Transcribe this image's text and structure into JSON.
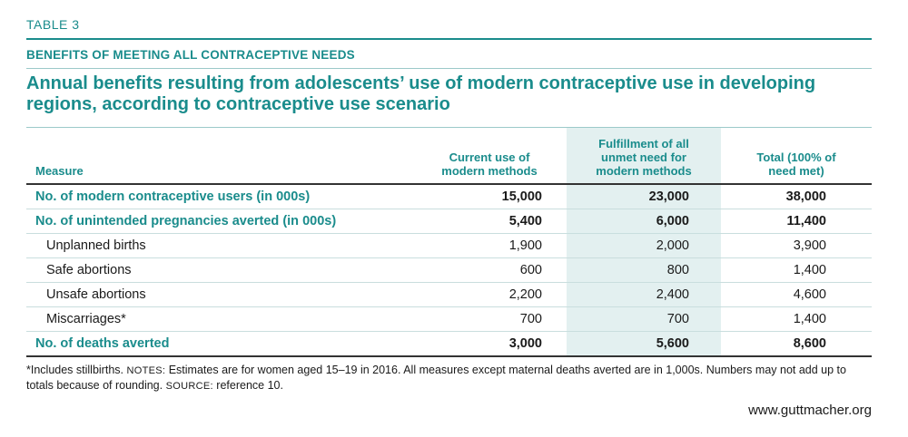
{
  "header": {
    "table_label": "TABLE 3",
    "subtitle": "BENEFITS OF MEETING ALL CONTRACEPTIVE NEEDS",
    "title": "Annual benefits resulting from adolescents’ use of modern contraceptive use in developing regions, according to contraceptive use scenario"
  },
  "table": {
    "columns": [
      {
        "label": "Measure"
      },
      {
        "label": "Current use of modern methods"
      },
      {
        "label": "Fulfillment of all unmet need for modern methods"
      },
      {
        "label": "Total (100% of need met)"
      }
    ],
    "rows": [
      {
        "name": "No. of modern contraceptive users (in 000s)",
        "current": "15,000",
        "fulfillment": "23,000",
        "total": "38,000",
        "bold": true
      },
      {
        "name": "No. of unintended pregnancies averted (in 000s)",
        "current": "5,400",
        "fulfillment": "6,000",
        "total": "11,400",
        "bold": true
      },
      {
        "name": "Unplanned births",
        "current": "1,900",
        "fulfillment": "2,000",
        "total": "3,900",
        "bold": false
      },
      {
        "name": "Safe abortions",
        "current": "600",
        "fulfillment": "800",
        "total": "1,400",
        "bold": false
      },
      {
        "name": "Unsafe abortions",
        "current": "2,200",
        "fulfillment": "2,400",
        "total": "4,600",
        "bold": false
      },
      {
        "name": "Miscarriages*",
        "current": "700",
        "fulfillment": "700",
        "total": "1,400",
        "bold": false
      },
      {
        "name": "No. of deaths averted",
        "current": "3,000",
        "fulfillment": "5,600",
        "total": "8,600",
        "bold": true
      }
    ]
  },
  "notes": {
    "footnote": "*Includes stillbirths.",
    "notes_label": "NOTES:",
    "notes_text": "Estimates are for women aged 15–19 in 2016. All measures except maternal deaths averted are in 1,000s. Numbers may not add up to totals because of rounding.",
    "source_label": "SOURCE:",
    "source_text": "reference 10."
  },
  "footer": {
    "url": "www.guttmacher.org"
  },
  "colors": {
    "accent": "#1a8c8c",
    "shade": "#e3f0f0"
  }
}
